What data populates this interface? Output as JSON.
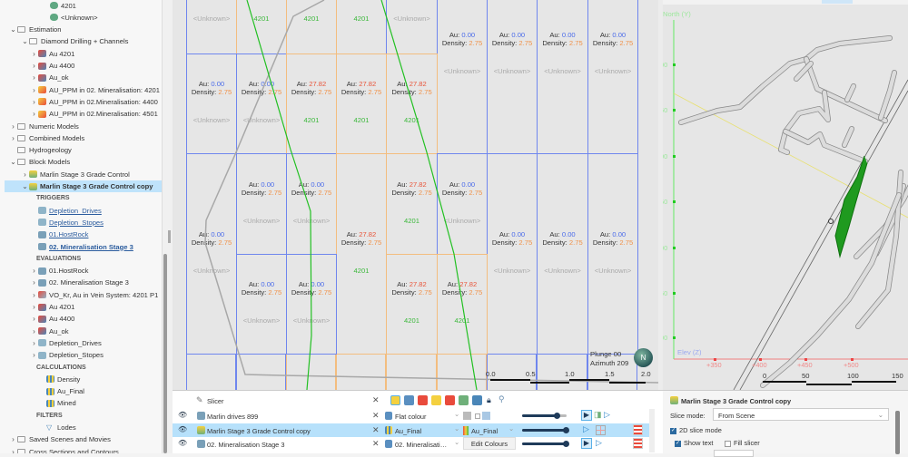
{
  "tree": {
    "items": [
      {
        "label": "4201",
        "depth": 3,
        "chevron": "none",
        "icon": "domain-green-icon",
        "style": "normal"
      },
      {
        "label": "<Unknown>",
        "depth": 3,
        "chevron": "none",
        "icon": "domain-green-icon",
        "style": "normal"
      },
      {
        "label": "Estimation",
        "depth": 0,
        "chevron": "down",
        "icon": "folder-icon",
        "style": "normal"
      },
      {
        "label": "Diamond Drilling + Channels",
        "depth": 1,
        "chevron": "down",
        "icon": "folder-icon",
        "style": "normal"
      },
      {
        "label": "Au 4201",
        "depth": 2,
        "chevron": "right",
        "icon": "estimator-icon",
        "style": "normal"
      },
      {
        "label": "Au 4400",
        "depth": 2,
        "chevron": "right",
        "icon": "estimator-icon",
        "style": "normal"
      },
      {
        "label": "Au_ok",
        "depth": 2,
        "chevron": "right",
        "icon": "estimator-icon",
        "style": "normal"
      },
      {
        "label": "AU_PPM in 02. Mineralisation: 4201",
        "depth": 2,
        "chevron": "right",
        "icon": "variogram-icon",
        "style": "normal"
      },
      {
        "label": "AU_PPM in 02.Mineralisation: 4400",
        "depth": 2,
        "chevron": "right",
        "icon": "variogram-icon",
        "style": "normal"
      },
      {
        "label": "AU_PPM in 02.Mineralisation: 4501",
        "depth": 2,
        "chevron": "right",
        "icon": "variogram-icon",
        "style": "normal"
      },
      {
        "label": "Numeric Models",
        "depth": 0,
        "chevron": "right",
        "icon": "folder-icon",
        "style": "normal"
      },
      {
        "label": "Combined Models",
        "depth": 0,
        "chevron": "right",
        "icon": "folder-icon",
        "style": "normal"
      },
      {
        "label": "Hydrogeology",
        "depth": 0,
        "chevron": "none",
        "icon": "folder-icon",
        "style": "normal"
      },
      {
        "label": "Block Models",
        "depth": 0,
        "chevron": "down",
        "icon": "folder-icon",
        "style": "normal"
      },
      {
        "label": "Marlin Stage 3 Grade Control",
        "depth": 1,
        "chevron": "right",
        "icon": "block-model-icon",
        "style": "normal"
      },
      {
        "label": "Marlin Stage 3 Grade Control copy",
        "depth": 1,
        "chevron": "down",
        "icon": "block-model-icon",
        "style": "selected"
      },
      {
        "label": "TRIGGERS",
        "depth": 2,
        "chevron": "none",
        "icon": "",
        "style": "header"
      },
      {
        "label": "Depletion_Drives",
        "depth": 2,
        "chevron": "none",
        "icon": "mesh-icon",
        "style": "link"
      },
      {
        "label": "Depletion_Stopes",
        "depth": 2,
        "chevron": "none",
        "icon": "mesh-icon",
        "style": "link"
      },
      {
        "label": "01.HostRock",
        "depth": 2,
        "chevron": "none",
        "icon": "geo-model-icon",
        "style": "link"
      },
      {
        "label": "02. Mineralisation Stage 3",
        "depth": 2,
        "chevron": "none",
        "icon": "geo-model-icon",
        "style": "boldlink"
      },
      {
        "label": "EVALUATIONS",
        "depth": 2,
        "chevron": "none",
        "icon": "",
        "style": "header"
      },
      {
        "label": "01.HostRock",
        "depth": 2,
        "chevron": "right",
        "icon": "geo-model-icon",
        "style": "normal"
      },
      {
        "label": "02. Mineralisation Stage 3",
        "depth": 2,
        "chevron": "right",
        "icon": "geo-model-icon",
        "style": "normal"
      },
      {
        "label": "VO_Kr, Au in Vein System: 4201 P1",
        "depth": 2,
        "chevron": "right",
        "icon": "kriging-icon",
        "style": "normal"
      },
      {
        "label": "Au 4201",
        "depth": 2,
        "chevron": "right",
        "icon": "estimator-icon",
        "style": "normal"
      },
      {
        "label": "Au 4400",
        "depth": 2,
        "chevron": "right",
        "icon": "estimator-icon",
        "style": "normal"
      },
      {
        "label": "Au_ok",
        "depth": 2,
        "chevron": "right",
        "icon": "estimator-icon",
        "style": "normal"
      },
      {
        "label": "Depletion_Drives",
        "depth": 2,
        "chevron": "right",
        "icon": "mesh-icon",
        "style": "normal"
      },
      {
        "label": "Depletion_Stopes",
        "depth": 2,
        "chevron": "right",
        "icon": "mesh-icon",
        "style": "normal"
      },
      {
        "label": "CALCULATIONS",
        "depth": 2,
        "chevron": "none",
        "icon": "",
        "style": "header"
      },
      {
        "label": "Density",
        "depth": 2,
        "chevron": "none",
        "icon": "calculation-icon",
        "style": "normal"
      },
      {
        "label": "Au_Final",
        "depth": 2,
        "chevron": "none",
        "icon": "calculation-icon",
        "style": "normal"
      },
      {
        "label": "Mined",
        "depth": 2,
        "chevron": "none",
        "icon": "calculation-icon",
        "style": "normal"
      },
      {
        "label": "FILTERS",
        "depth": 2,
        "chevron": "none",
        "icon": "",
        "style": "header"
      },
      {
        "label": "Lodes",
        "depth": 2,
        "chevron": "none",
        "icon": "filter-icon",
        "style": "normal"
      },
      {
        "label": "Saved Scenes and Movies",
        "depth": 0,
        "chevron": "right",
        "icon": "folder-icon",
        "style": "normal"
      },
      {
        "label": "Cross Sections and Contours",
        "depth": 0,
        "chevron": "right",
        "icon": "folder-icon",
        "style": "normal"
      }
    ]
  },
  "section_view": {
    "au_label": "Au:",
    "density_label": "Density:",
    "blocks": [
      {
        "au": null,
        "density": null,
        "domain": "<Unknown>"
      },
      {
        "au": null,
        "density": null,
        "domain": "4201"
      },
      {
        "au": null,
        "density": null,
        "domain": "4201"
      },
      {
        "au": null,
        "density": null,
        "domain": "4201"
      },
      {
        "au": null,
        "density": null,
        "domain": "<Unknown>"
      },
      {
        "au": "0.00",
        "density": "2.75",
        "domain": "<Unknown>"
      },
      {
        "au": "0.00",
        "density": "2.75",
        "domain": "<Unknown>"
      },
      {
        "au": "0.00",
        "density": "2.75",
        "domain": "<Unknown>"
      },
      {
        "au": "0.00",
        "density": "2.75",
        "domain": "<Unknown>"
      },
      {
        "au": "0.00",
        "density": "2.75",
        "domain": "<Unknown>"
      },
      {
        "au": "0.00",
        "density": "2.75",
        "domain": "<Unknown>"
      },
      {
        "au": "27.82",
        "density": "2.75",
        "domain": "4201"
      },
      {
        "au": "27.82",
        "density": "2.75",
        "domain": "4201"
      },
      {
        "au": "27.82",
        "density": "2.75",
        "domain": "4201"
      },
      {
        "au": "0.00",
        "density": "2.75",
        "domain": "<Unknown>"
      },
      {
        "au": "0.00",
        "density": "2.75",
        "domain": "<Unknown>"
      },
      {
        "au": "0.00",
        "density": "2.75",
        "domain": "<Unknown>"
      },
      {
        "au": "27.82",
        "density": "2.75",
        "domain": "4201"
      },
      {
        "au": "27.82",
        "density": "2.75",
        "domain": "4201"
      },
      {
        "au": "0.00",
        "density": "2.75",
        "domain": "<Unknown>"
      },
      {
        "au": "0.00",
        "density": "2.75",
        "domain": "<Unknown>"
      },
      {
        "au": "0.00",
        "density": "2.75",
        "domain": "<Unknown>"
      },
      {
        "au": "0.00",
        "density": "2.75",
        "domain": "<Unknown>"
      },
      {
        "au": "0.00",
        "density": "2.75",
        "domain": "<Unknown>"
      },
      {
        "au": "0.00",
        "density": "2.75",
        "domain": "<Unknown>"
      },
      {
        "au": "27.82",
        "density": "2.75",
        "domain": "4201"
      },
      {
        "au": "27.82",
        "density": "2.75",
        "domain": "4201"
      }
    ],
    "plunge": "Plunge 00",
    "azimuth": "Azimuth 209",
    "scale_labels": [
      "0.0",
      "0.5",
      "1.0",
      "1.5",
      "2.0"
    ]
  },
  "scene_view": {
    "north_axis": "North (Y)",
    "elev_axis": "Elev (Z)",
    "y_ticks": [
      "00",
      "50",
      "00",
      "50",
      "00",
      "50",
      "00"
    ],
    "x_ticks": [
      "+350",
      "+400",
      "+450",
      "+500"
    ],
    "scale_labels": [
      "0",
      "50",
      "100",
      "150"
    ]
  },
  "shape_list": {
    "slicer_label": "Slicer",
    "rows": [
      {
        "name": "Marlin drives 899",
        "style": "Flat colour",
        "colour": "",
        "selected": false,
        "opacity": 0.8
      },
      {
        "name": "Marlin Stage 3 Grade Control copy",
        "style": "Au_Final",
        "colour": "Au_Final",
        "selected": true,
        "opacity": 1.0
      },
      {
        "name": "02. Mineralisation Stage 3",
        "style": "02. Mineralisati…",
        "colour": "",
        "button": "Edit Colours",
        "selected": false,
        "opacity": 1.0
      }
    ]
  },
  "properties": {
    "title": "Marlin Stage 3 Grade Control copy",
    "slice_mode_label": "Slice mode:",
    "slice_mode_value": "From Scene",
    "slice_2d_label": "2D slice mode",
    "slice_2d_checked": true,
    "show_text_label": "Show text",
    "show_text_checked": true,
    "fill_slicer_label": "Fill slicer",
    "fill_slicer_checked": false
  },
  "colors": {
    "unknown_border": "#6f86ee",
    "domain_border": "#f3bd7f",
    "drillhole": "#22c022",
    "selection": "#bfe3fb"
  }
}
